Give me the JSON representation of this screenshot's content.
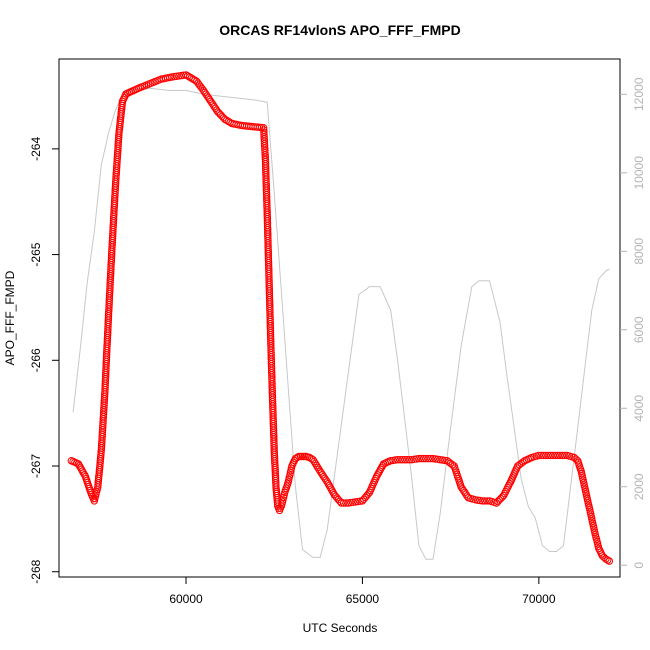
{
  "chart_data": {
    "type": "scatter",
    "title": "ORCAS RF14vlonS APO_FFF_FMPD",
    "xlabel": "UTC Seconds",
    "ylabel": "APO_FFF_FMPD",
    "xlim": [
      56400,
      72300
    ],
    "ylim": [
      -268.05,
      -263.15
    ],
    "y2lim": [
      -300,
      12900
    ],
    "x_ticks": [
      60000,
      65000,
      70000
    ],
    "x_tick_labels": [
      "60000",
      "65000",
      "70000"
    ],
    "y_ticks": [
      -264,
      -265,
      -266,
      -267,
      -268
    ],
    "y_tick_labels": [
      "-264",
      "-265",
      "-266",
      "-267",
      "-268"
    ],
    "y2_ticks": [
      0,
      2000,
      4000,
      6000,
      8000,
      10000,
      12000
    ],
    "y2_tick_labels": [
      "0",
      "2000",
      "4000",
      "6000",
      "8000",
      "10000",
      "12000"
    ],
    "grid": false,
    "series": [
      {
        "color": "#ff0000",
        "marker": "open-circle",
        "x": [
          56750,
          56950,
          57150,
          57300,
          57400,
          57500,
          57600,
          57700,
          57800,
          57900,
          58000,
          58100,
          58200,
          58300,
          58500,
          58700,
          59000,
          59300,
          59600,
          60000,
          60300,
          60500,
          60700,
          60900,
          61100,
          61300,
          61600,
          61900,
          62200,
          62250,
          62300,
          62350,
          62400,
          62450,
          62500,
          62550,
          62600,
          62650,
          62700,
          62750,
          62800,
          62900,
          63000,
          63100,
          63200,
          63300,
          63400,
          63500,
          63600,
          63800,
          64000,
          64200,
          64400,
          64600,
          64800,
          65000,
          65200,
          65400,
          65600,
          65800,
          66000,
          66200,
          66400,
          66600,
          66800,
          67000,
          67200,
          67400,
          67600,
          67800,
          68000,
          68200,
          68400,
          68600,
          68800,
          69000,
          69200,
          69400,
          69600,
          69800,
          70000,
          70200,
          70400,
          70600,
          70800,
          71000,
          71100,
          71200,
          71300,
          71400,
          71500,
          71600,
          71700,
          71800,
          71900,
          72000
        ],
        "y": [
          -266.95,
          -266.98,
          -267.1,
          -267.25,
          -267.33,
          -267.2,
          -266.85,
          -266.3,
          -265.6,
          -264.95,
          -264.35,
          -263.85,
          -263.55,
          -263.48,
          -263.45,
          -263.42,
          -263.38,
          -263.34,
          -263.32,
          -263.3,
          -263.36,
          -263.45,
          -263.55,
          -263.65,
          -263.72,
          -263.76,
          -263.78,
          -263.79,
          -263.8,
          -264.1,
          -264.6,
          -265.2,
          -265.8,
          -266.35,
          -266.85,
          -267.2,
          -267.38,
          -267.42,
          -267.38,
          -267.32,
          -267.25,
          -267.15,
          -267.0,
          -266.93,
          -266.91,
          -266.91,
          -266.91,
          -266.92,
          -266.94,
          -267.05,
          -267.15,
          -267.27,
          -267.35,
          -267.35,
          -267.34,
          -267.33,
          -267.25,
          -267.1,
          -266.98,
          -266.95,
          -266.94,
          -266.94,
          -266.94,
          -266.93,
          -266.93,
          -266.93,
          -266.94,
          -266.95,
          -267.0,
          -267.2,
          -267.3,
          -267.32,
          -267.33,
          -267.33,
          -267.35,
          -267.28,
          -267.15,
          -267.0,
          -266.95,
          -266.92,
          -266.9,
          -266.9,
          -266.9,
          -266.9,
          -266.9,
          -266.92,
          -266.95,
          -267.05,
          -267.2,
          -267.35,
          -267.5,
          -267.65,
          -267.78,
          -267.85,
          -267.88,
          -267.9
        ]
      },
      {
        "color": "#c8c8c8",
        "axis": "right",
        "marker": "line",
        "x": [
          56800,
          57000,
          57200,
          57400,
          57600,
          57800,
          58000,
          58200,
          58400,
          58700,
          59000,
          59500,
          60000,
          60500,
          61000,
          61500,
          62000,
          62300,
          62500,
          62700,
          62900,
          63100,
          63300,
          63450,
          63600,
          63800,
          64000,
          64300,
          64600,
          64900,
          65200,
          65500,
          65800,
          66000,
          66200,
          66400,
          66600,
          66800,
          67000,
          67200,
          67500,
          67800,
          68100,
          68300,
          68600,
          68900,
          69100,
          69300,
          69500,
          69700,
          69900,
          70100,
          70300,
          70500,
          70700,
          70900,
          71100,
          71300,
          71500,
          71700,
          71900,
          72000
        ],
        "y": [
          3900,
          5500,
          7200,
          8500,
          10200,
          11000,
          11600,
          12000,
          12100,
          12150,
          12150,
          12100,
          12100,
          12000,
          11950,
          11900,
          11850,
          11800,
          9500,
          7000,
          4500,
          2000,
          400,
          300,
          200,
          200,
          900,
          2900,
          4900,
          6900,
          7100,
          7100,
          6500,
          5200,
          3700,
          2200,
          500,
          150,
          150,
          1300,
          3500,
          5600,
          7100,
          7250,
          7250,
          6200,
          4800,
          3500,
          2200,
          1500,
          1200,
          500,
          350,
          350,
          500,
          2000,
          3500,
          5000,
          6500,
          7300,
          7500,
          7550
        ]
      }
    ]
  }
}
